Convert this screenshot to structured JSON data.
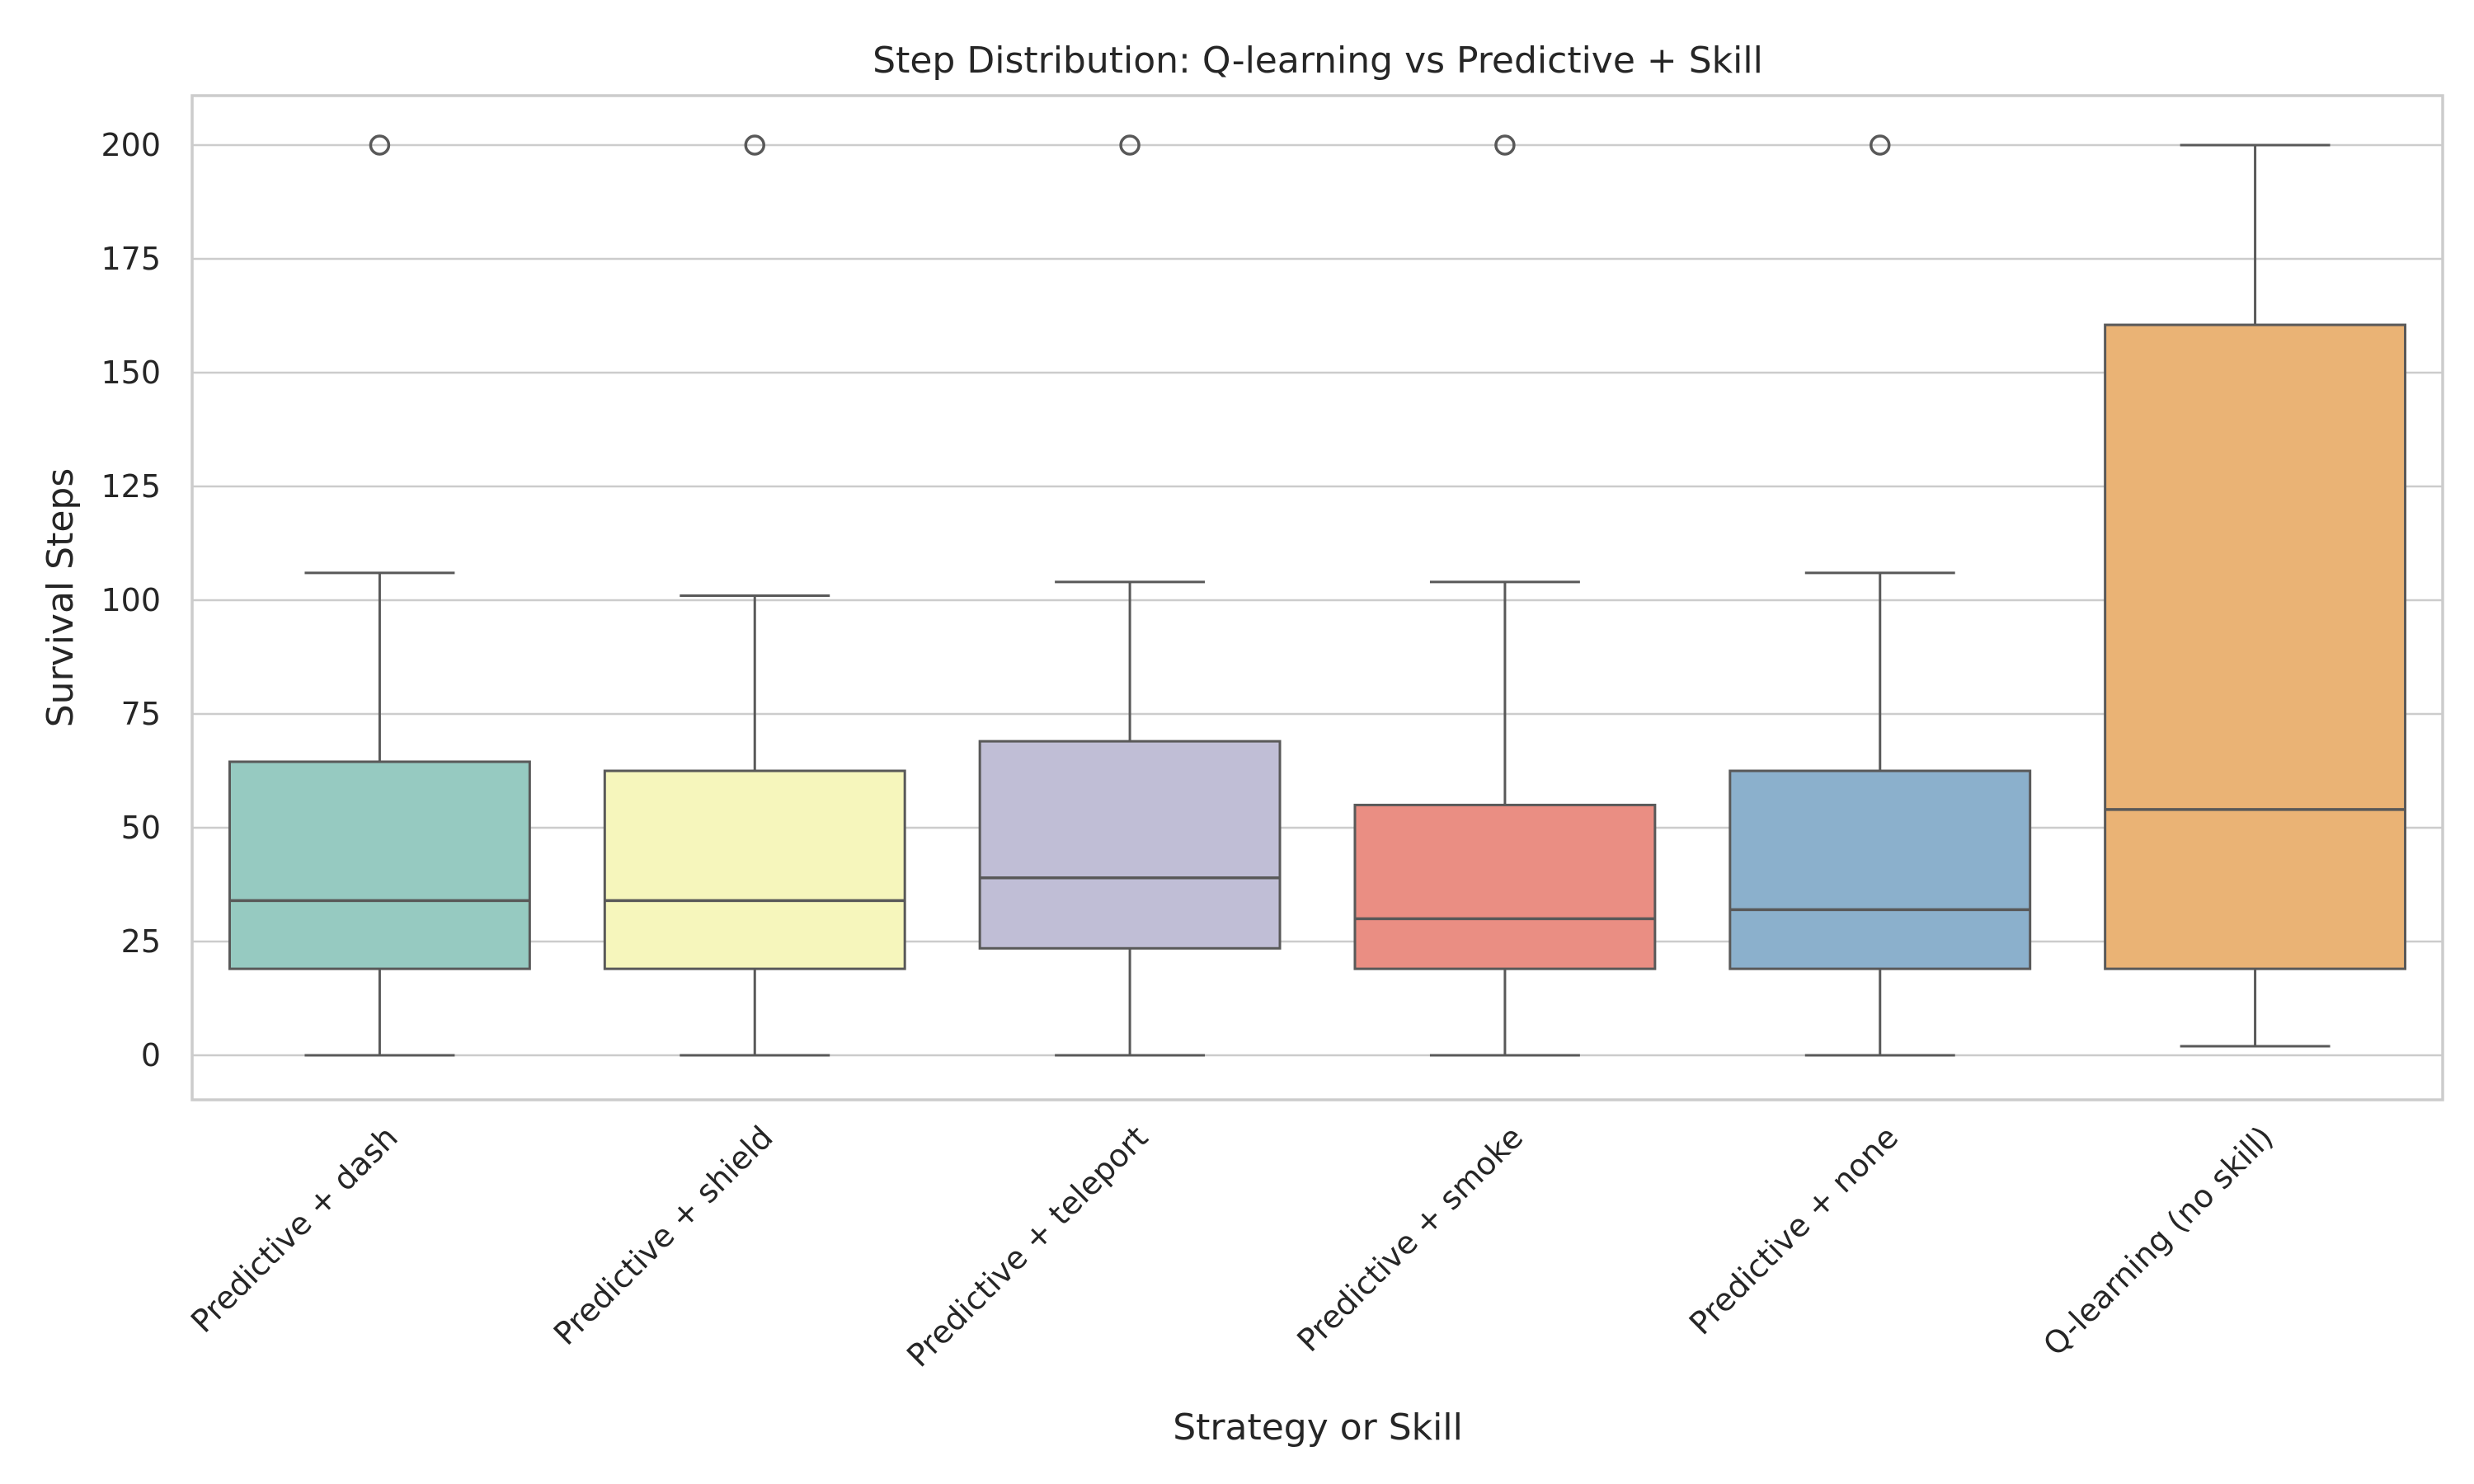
{
  "chart_data": {
    "type": "box",
    "title": "Step Distribution: Q-learning vs Predictive + Skill",
    "xlabel": "Strategy or Skill",
    "ylabel": "Survival Steps",
    "ylim": [
      -10,
      211
    ],
    "yticks": [
      0,
      25,
      50,
      75,
      100,
      125,
      150,
      175,
      200
    ],
    "grid": true,
    "categories": [
      "Predictive + dash",
      "Predictive + shield",
      "Predictive + teleport",
      "Predictive + smoke",
      "Predictive + none",
      "Q-learning (no skill)"
    ],
    "boxes": [
      {
        "name": "Predictive + dash",
        "color": "#96cac1",
        "whisker_low": 0,
        "q1": 19,
        "median": 34,
        "q3": 64.5,
        "whisker_high": 106,
        "outliers": [
          200
        ]
      },
      {
        "name": "Predictive + shield",
        "color": "#f6f6bc",
        "whisker_low": 0,
        "q1": 19,
        "median": 34,
        "q3": 62.5,
        "whisker_high": 101,
        "outliers": [
          200
        ]
      },
      {
        "name": "Predictive + teleport",
        "color": "#c0bed6",
        "whisker_low": 0,
        "q1": 23.5,
        "median": 39,
        "q3": 69,
        "whisker_high": 104,
        "outliers": [
          200
        ]
      },
      {
        "name": "Predictive + smoke",
        "color": "#ea8e83",
        "whisker_low": 0,
        "q1": 19,
        "median": 30,
        "q3": 55,
        "whisker_high": 104,
        "outliers": [
          200
        ]
      },
      {
        "name": "Predictive + none",
        "color": "#8bb0cc",
        "whisker_low": 0,
        "q1": 19,
        "median": 32,
        "q3": 62.5,
        "whisker_high": 106,
        "outliers": [
          200
        ]
      },
      {
        "name": "Q-learning (no skill)",
        "color": "#eab375",
        "whisker_low": 2,
        "q1": 19,
        "median": 54,
        "q3": 160.5,
        "whisker_high": 200,
        "outliers": []
      }
    ]
  }
}
